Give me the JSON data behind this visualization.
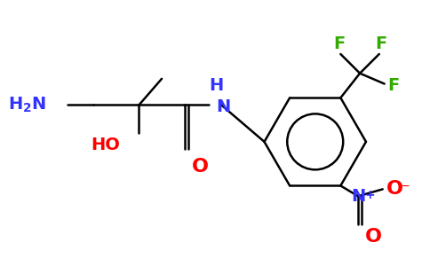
{
  "bg_color": "#ffffff",
  "atom_colors": {
    "C": "#000000",
    "N": "#3333ff",
    "O": "#ff0000",
    "F": "#33aa00",
    "bond": "#000000"
  },
  "figsize": [
    4.84,
    3.0
  ],
  "dpi": 100
}
